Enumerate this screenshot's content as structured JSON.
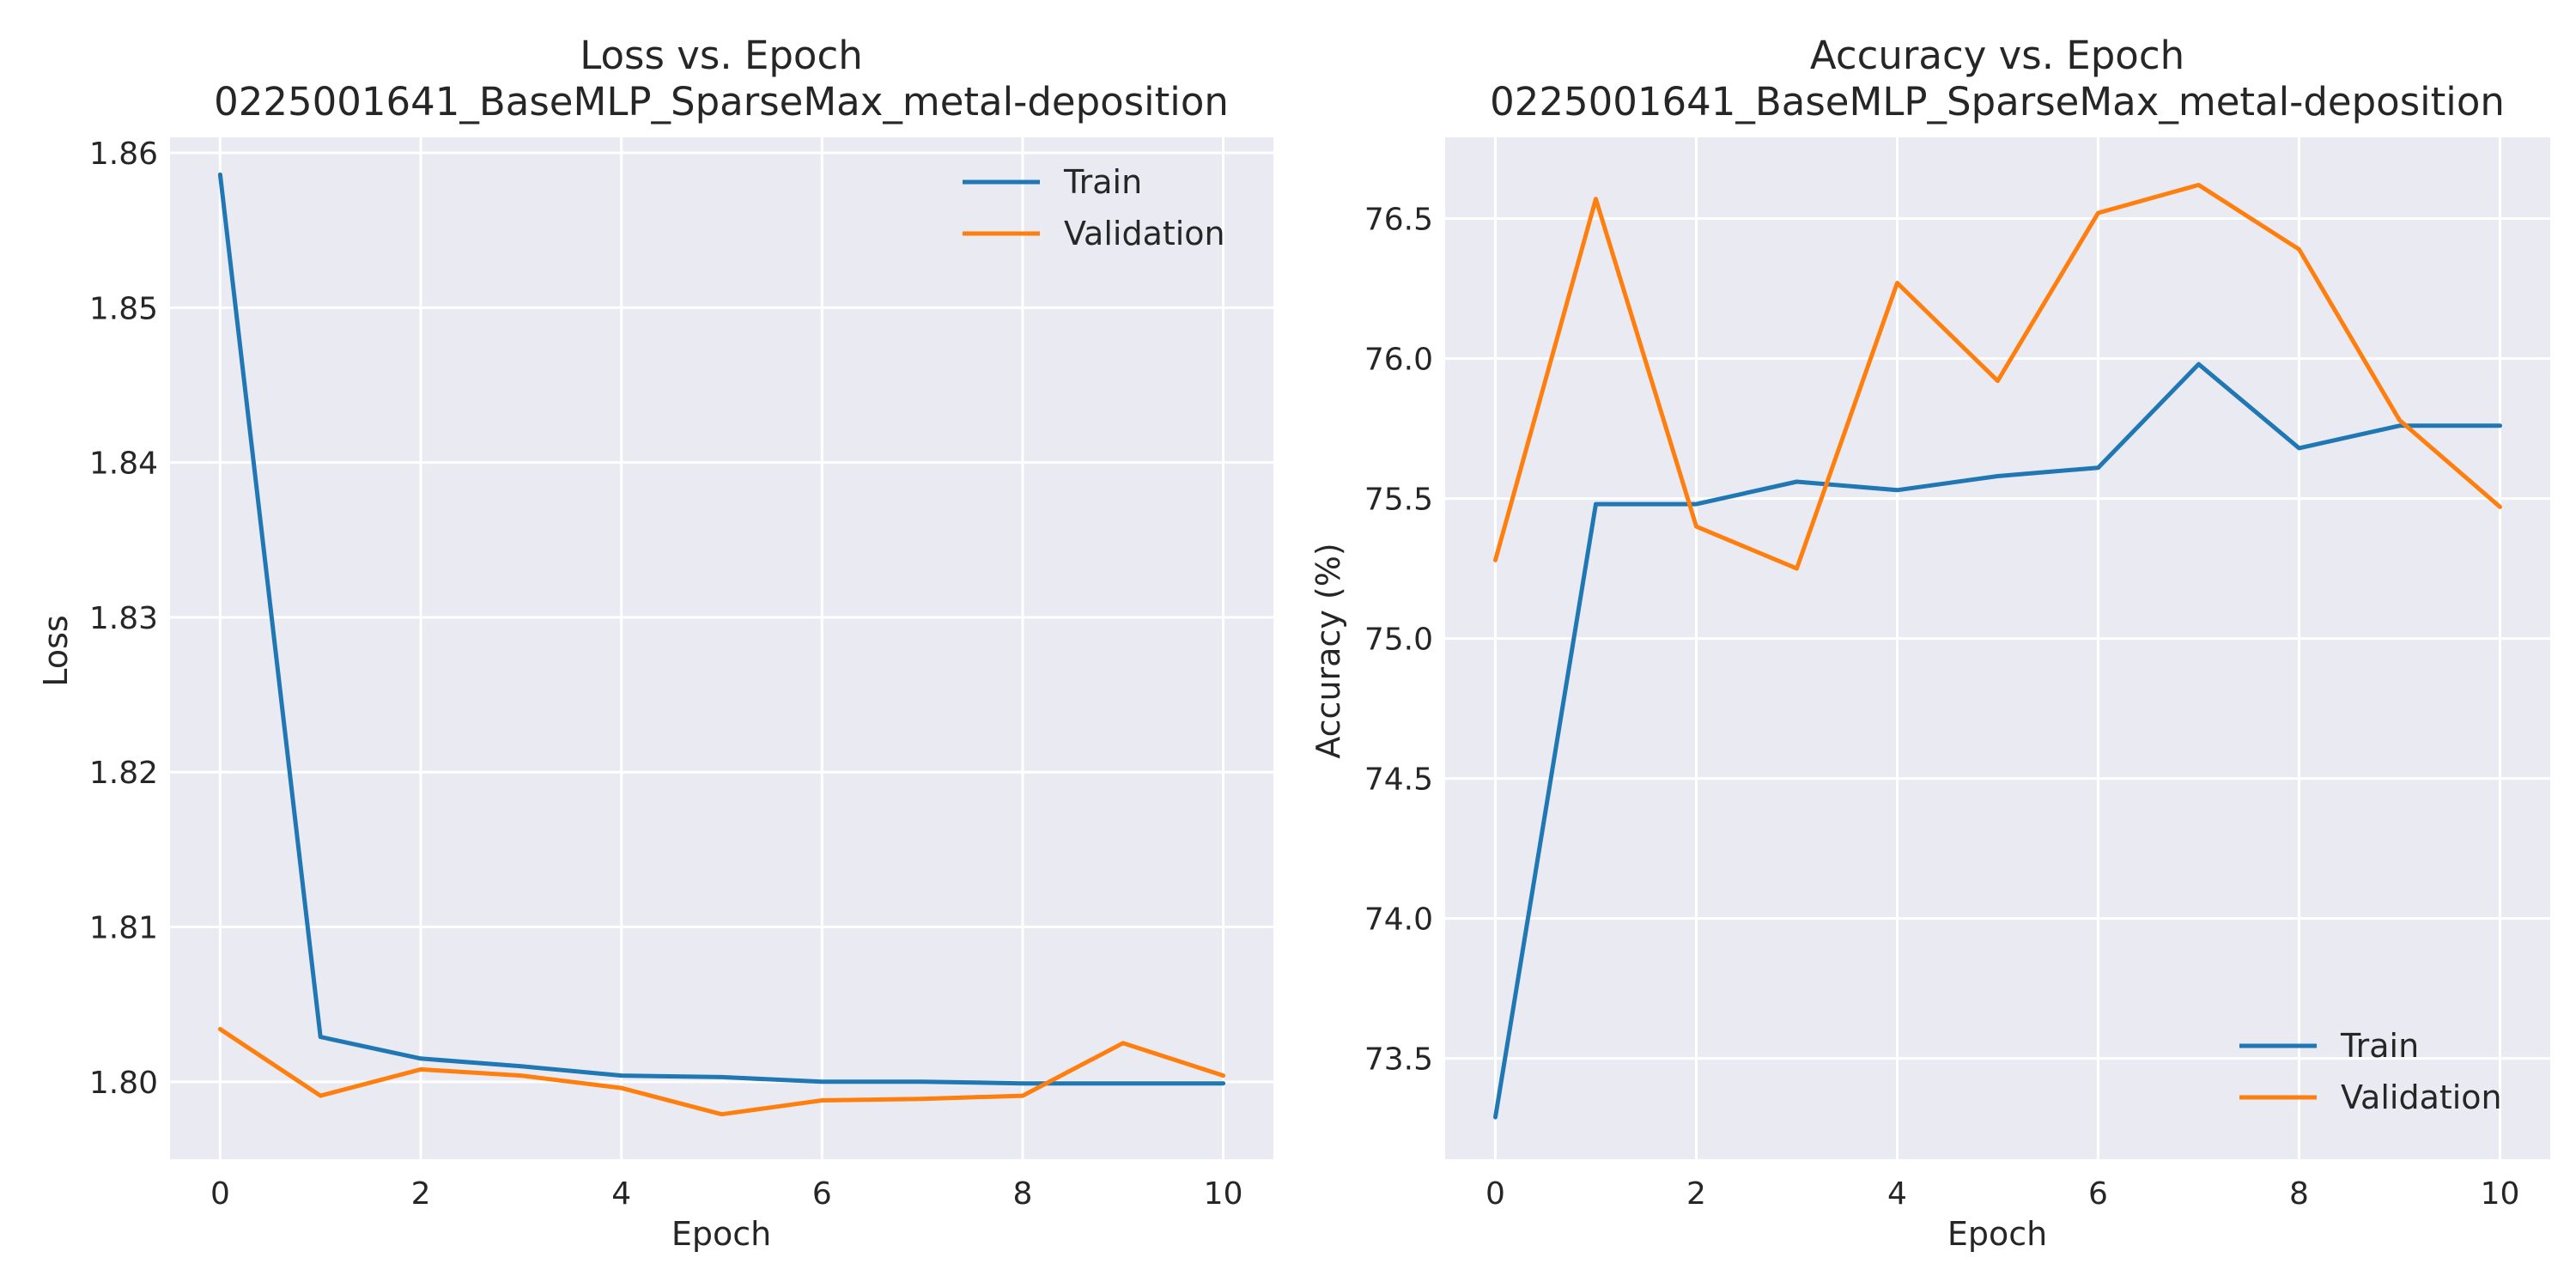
{
  "chart_data": [
    {
      "type": "line",
      "title": "Loss vs. Epoch",
      "subtitle": "0225001641_BaseMLP_SparseMax_metal-deposition",
      "xlabel": "Epoch",
      "ylabel": "Loss",
      "xlim": [
        -0.5,
        10.5
      ],
      "ylim": [
        1.795,
        1.861
      ],
      "xticks": [
        0,
        2,
        4,
        6,
        8,
        10
      ],
      "yticks": [
        1.8,
        1.81,
        1.82,
        1.83,
        1.84,
        1.85,
        1.86
      ],
      "ytick_labels": [
        "1.80",
        "1.81",
        "1.82",
        "1.83",
        "1.84",
        "1.85",
        "1.86"
      ],
      "grid": true,
      "legend_position": "top-right",
      "x": [
        0,
        1,
        2,
        3,
        4,
        5,
        6,
        7,
        8,
        9,
        10
      ],
      "series": [
        {
          "name": "Train",
          "color": "#1f77b4",
          "values": [
            1.8586,
            1.8029,
            1.8015,
            1.801,
            1.8004,
            1.8003,
            1.8,
            1.8,
            1.7999,
            1.7999,
            1.7999
          ]
        },
        {
          "name": "Validation",
          "color": "#ff7f0e",
          "values": [
            1.8034,
            1.7991,
            1.8008,
            1.8004,
            1.7996,
            1.7979,
            1.7988,
            1.7989,
            1.7991,
            1.8025,
            1.8004
          ]
        }
      ]
    },
    {
      "type": "line",
      "title": "Accuracy vs. Epoch",
      "subtitle": "0225001641_BaseMLP_SparseMax_metal-deposition",
      "xlabel": "Epoch",
      "ylabel": "Accuracy (%)",
      "xlim": [
        -0.5,
        10.5
      ],
      "ylim": [
        73.14,
        76.79
      ],
      "xticks": [
        0,
        2,
        4,
        6,
        8,
        10
      ],
      "yticks": [
        73.5,
        74.0,
        74.5,
        75.0,
        75.5,
        76.0,
        76.5
      ],
      "ytick_labels": [
        "73.5",
        "74.0",
        "74.5",
        "75.0",
        "75.5",
        "76.0",
        "76.5"
      ],
      "grid": true,
      "legend_position": "bottom-right",
      "x": [
        0,
        1,
        2,
        3,
        4,
        5,
        6,
        7,
        8,
        9,
        10
      ],
      "series": [
        {
          "name": "Train",
          "color": "#1f77b4",
          "values": [
            73.29,
            75.48,
            75.48,
            75.56,
            75.53,
            75.58,
            75.61,
            75.98,
            75.68,
            75.76,
            75.76
          ]
        },
        {
          "name": "Validation",
          "color": "#ff7f0e",
          "values": [
            75.28,
            76.57,
            75.4,
            75.25,
            76.27,
            75.92,
            76.52,
            76.62,
            76.39,
            75.78,
            75.47
          ]
        }
      ]
    }
  ]
}
